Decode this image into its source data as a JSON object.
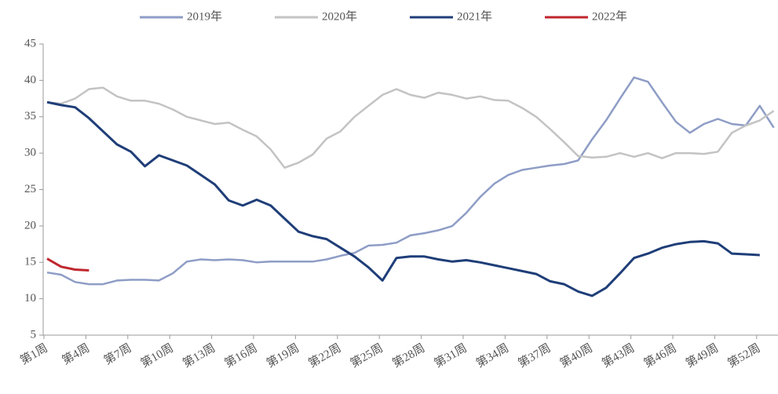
{
  "chart_data": {
    "type": "line",
    "categories": [
      "第1周",
      null,
      null,
      "第4周",
      null,
      null,
      "第7周",
      null,
      null,
      "第10周",
      null,
      null,
      "第13周",
      null,
      null,
      "第16周",
      null,
      null,
      "第19周",
      null,
      null,
      "第22周",
      null,
      null,
      "第25周",
      null,
      null,
      "第28周",
      null,
      null,
      "第31周",
      null,
      null,
      "第34周",
      null,
      null,
      "第37周",
      null,
      null,
      "第40周",
      null,
      null,
      "第43周",
      null,
      null,
      "第46周",
      null,
      null,
      "第49周",
      null,
      null,
      "第52周",
      null
    ],
    "series": [
      {
        "name": "2019年",
        "color": "#8e9dc6",
        "values": [
          13.6,
          13.3,
          12.3,
          12.0,
          12.0,
          12.5,
          12.6,
          12.6,
          12.5,
          13.5,
          15.1,
          15.4,
          15.3,
          15.4,
          15.3,
          15.0,
          15.1,
          15.1,
          15.1,
          15.1,
          15.4,
          15.9,
          16.3,
          17.3,
          17.4,
          17.7,
          18.7,
          19.0,
          19.4,
          20.0,
          21.8,
          24.0,
          25.8,
          27.0,
          27.7,
          28.0,
          28.3,
          28.5,
          29.0,
          31.9,
          34.5,
          37.5,
          40.4,
          39.8,
          37.0,
          34.3,
          32.8,
          34.0,
          34.7,
          34.0,
          33.8,
          36.5,
          33.5
        ]
      },
      {
        "name": "2020年",
        "color": "#c3c3c3",
        "values": [
          37.0,
          36.8,
          37.5,
          38.8,
          39.0,
          37.8,
          37.2,
          37.2,
          36.8,
          36.0,
          35.0,
          34.5,
          34.0,
          34.2,
          33.2,
          32.3,
          30.5,
          28.0,
          28.7,
          29.8,
          32.0,
          33.0,
          35.0,
          36.5,
          38.0,
          38.8,
          38.0,
          37.6,
          38.3,
          38.0,
          37.5,
          37.8,
          37.3,
          37.2,
          36.2,
          35.0,
          33.3,
          31.5,
          29.6,
          29.4,
          29.5,
          30.0,
          29.5,
          30.0,
          29.3,
          30.0,
          30.0,
          29.9,
          30.2,
          32.8,
          33.8,
          34.5,
          35.8
        ]
      },
      {
        "name": "2021年",
        "color": "#1f3e78",
        "values": [
          37.0,
          36.6,
          36.3,
          34.8,
          33.0,
          31.2,
          30.2,
          28.2,
          29.7,
          29.0,
          28.3,
          27.0,
          25.7,
          23.5,
          22.8,
          23.6,
          22.8,
          21.0,
          19.2,
          18.6,
          18.2,
          17.0,
          15.8,
          14.3,
          12.5,
          15.6,
          15.8,
          15.8,
          15.4,
          15.1,
          15.3,
          15.0,
          14.6,
          14.2,
          13.8,
          13.4,
          12.4,
          12.0,
          11.0,
          10.4,
          11.5,
          13.5,
          15.6,
          16.2,
          17.0,
          17.5,
          17.8,
          17.9,
          17.6,
          16.2,
          16.1,
          16.0,
          null
        ]
      },
      {
        "name": "2022年",
        "color": "#c0262d",
        "values": [
          15.5,
          14.4,
          14.0,
          13.9,
          null,
          null,
          null,
          null,
          null,
          null,
          null,
          null,
          null,
          null,
          null,
          null,
          null,
          null,
          null,
          null,
          null,
          null,
          null,
          null,
          null,
          null,
          null,
          null,
          null,
          null,
          null,
          null,
          null,
          null,
          null,
          null,
          null,
          null,
          null,
          null,
          null,
          null,
          null,
          null,
          null,
          null,
          null,
          null,
          null,
          null,
          null,
          null,
          null
        ]
      }
    ],
    "ylim": [
      5,
      45
    ],
    "yticks": [
      5,
      10,
      15,
      20,
      25,
      30,
      35,
      40,
      45
    ],
    "grid": false,
    "legend": "top"
  }
}
